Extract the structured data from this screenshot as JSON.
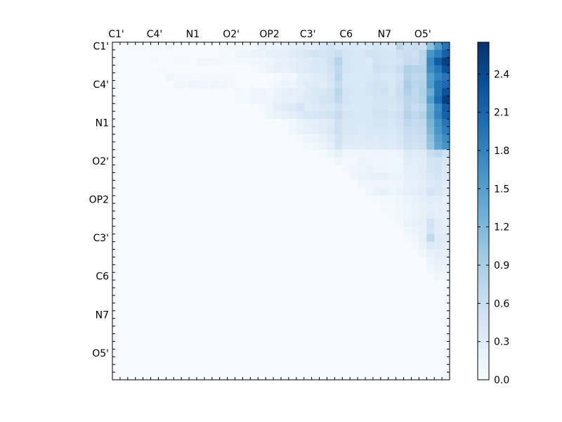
{
  "chart_data": {
    "type": "heatmap",
    "x_tick_labels": [
      "C1'",
      "C4'",
      "N1",
      "O2'",
      "OP2",
      "C3'",
      "C6",
      "N7",
      "O5'"
    ],
    "y_tick_labels": [
      "C1'",
      "C4'",
      "N1",
      "O2'",
      "OP2",
      "C3'",
      "C6",
      "N7",
      "O5'"
    ],
    "tick_every_cells": 5,
    "grid": false,
    "colorscale": "Blues",
    "colorbar": {
      "range": [
        0,
        2.65
      ],
      "ticks": [
        "0.0",
        "0.3",
        "0.6",
        "0.9",
        "1.2",
        "1.5",
        "1.8",
        "2.1",
        "2.4"
      ],
      "tick_values": [
        0,
        0.3,
        0.6,
        0.9,
        1.2,
        1.5,
        1.8,
        2.1,
        2.4
      ]
    },
    "values": [
      [
        0,
        0,
        0.06,
        0.06,
        0,
        0.06,
        0.03,
        0.1,
        0.02,
        0.02,
        0.02,
        0.02,
        0.02,
        0.02,
        0.02,
        0.06,
        0.06,
        0.08,
        0.06,
        0.18,
        0.12,
        0.15,
        0.2,
        0.22,
        0.28,
        0.32,
        0.3,
        0.42,
        0.48,
        0.38,
        0.4,
        0.38,
        0.35,
        0.4,
        0.45,
        0.4,
        0.38,
        0.75,
        0.55,
        0.6,
        0.55,
        1.1,
        1.55,
        1.95
      ],
      [
        0,
        0,
        0,
        0,
        0,
        0,
        0,
        0,
        0,
        0,
        0,
        0,
        0,
        0,
        0.05,
        0.05,
        0.1,
        0.1,
        0.15,
        0.15,
        0.2,
        0.22,
        0.25,
        0.3,
        0.35,
        0.4,
        0.5,
        0.45,
        0.5,
        0.6,
        0.45,
        0.42,
        0.42,
        0.5,
        0.48,
        0.45,
        0.42,
        0.55,
        0.6,
        0.55,
        0.75,
        1.6,
        1.85,
        2.15
      ],
      [
        0,
        0,
        0,
        0,
        0,
        0.04,
        0,
        0,
        0.04,
        0.04,
        0.03,
        0.08,
        0.08,
        0.06,
        0.05,
        0.04,
        0.04,
        0.04,
        0.08,
        0.1,
        0.12,
        0.18,
        0.2,
        0.25,
        0.3,
        0.32,
        0.38,
        0.4,
        0.55,
        0.8,
        0.45,
        0.4,
        0.4,
        0.35,
        0.5,
        0.45,
        0.42,
        0.5,
        0.65,
        0.6,
        0.75,
        1.75,
        2.2,
        2.5
      ],
      [
        0,
        0,
        0,
        0,
        0,
        0,
        0.05,
        0,
        0,
        0,
        0,
        0,
        0,
        0,
        0,
        0,
        0,
        0,
        0.05,
        0.1,
        0.15,
        0.2,
        0.18,
        0.25,
        0.3,
        0.35,
        0.4,
        0.38,
        0.5,
        0.7,
        0.45,
        0.42,
        0.4,
        0.38,
        0.55,
        0.5,
        0.48,
        0.6,
        0.85,
        0.8,
        0.8,
        1.7,
        1.95,
        2.3
      ],
      [
        0,
        0,
        0,
        0,
        0,
        0,
        0,
        0.1,
        0.05,
        0.04,
        0.04,
        0.04,
        0.04,
        0.04,
        0.04,
        0.05,
        0,
        0,
        0,
        0,
        0,
        0.05,
        0.1,
        0.08,
        0.2,
        0.25,
        0.3,
        0.35,
        0.45,
        0.75,
        0.4,
        0.38,
        0.38,
        0.42,
        0.45,
        0.42,
        0.4,
        0.5,
        0.8,
        0.7,
        0.75,
        1.5,
        1.8,
        1.95
      ],
      [
        0,
        0,
        0,
        0,
        0,
        0,
        0,
        0,
        0.08,
        0.08,
        0.12,
        0.1,
        0.08,
        0.12,
        0.08,
        0.05,
        0,
        0,
        0,
        0,
        0.04,
        0.1,
        0.15,
        0.12,
        0.22,
        0.3,
        0.32,
        0.3,
        0.4,
        0.65,
        0.42,
        0.4,
        0.38,
        0.45,
        0.5,
        0.5,
        0.4,
        0.55,
        0.9,
        0.75,
        0.8,
        1.55,
        1.95,
        2.05
      ],
      [
        0,
        0,
        0,
        0,
        0,
        0,
        0,
        0,
        0,
        0,
        0,
        0,
        0,
        0,
        0,
        0,
        0.08,
        0.05,
        0.1,
        0.12,
        0.08,
        0.15,
        0.2,
        0.25,
        0.25,
        0.32,
        0.38,
        0.4,
        0.5,
        0.75,
        0.45,
        0.42,
        0.42,
        0.45,
        0.5,
        0.55,
        0.4,
        0.6,
        0.85,
        0.7,
        0.85,
        1.35,
        1.95,
        2.3
      ],
      [
        0,
        0,
        0,
        0,
        0,
        0,
        0,
        0,
        0,
        0,
        0,
        0,
        0,
        0,
        0,
        0,
        0.05,
        0.05,
        0.1,
        0.12,
        0.1,
        0.18,
        0.25,
        0.22,
        0.3,
        0.35,
        0.4,
        0.45,
        0.5,
        0.7,
        0.45,
        0.4,
        0.4,
        0.4,
        0.48,
        0.45,
        0.45,
        0.55,
        0.75,
        0.7,
        0.8,
        1.5,
        2.05,
        2.5
      ],
      [
        0,
        0,
        0,
        0,
        0,
        0,
        0,
        0,
        0,
        0,
        0,
        0,
        0,
        0,
        0,
        0,
        0,
        0,
        0,
        0.05,
        0.1,
        0.22,
        0.3,
        0.35,
        0.45,
        0.3,
        0.35,
        0.4,
        0.42,
        0.55,
        0.4,
        0.38,
        0.4,
        0.42,
        0.45,
        0.45,
        0.4,
        0.5,
        0.75,
        0.6,
        0.7,
        1.3,
        1.75,
        2.2
      ],
      [
        0,
        0,
        0,
        0,
        0,
        0,
        0,
        0,
        0,
        0,
        0,
        0,
        0,
        0,
        0,
        0,
        0,
        0,
        0,
        0,
        0.1,
        0.15,
        0.2,
        0.25,
        0.35,
        0.4,
        0.42,
        0.45,
        0.5,
        0.65,
        0.45,
        0.42,
        0.42,
        0.42,
        0.5,
        0.5,
        0.45,
        0.55,
        0.8,
        0.7,
        0.8,
        1.35,
        1.8,
        2.15
      ],
      [
        0,
        0,
        0,
        0,
        0,
        0,
        0,
        0,
        0,
        0,
        0,
        0,
        0,
        0,
        0,
        0,
        0,
        0,
        0,
        0,
        0,
        0,
        0.05,
        0.1,
        0.15,
        0.2,
        0.25,
        0.3,
        0.35,
        0.55,
        0.4,
        0.4,
        0.38,
        0.4,
        0.45,
        0.45,
        0.4,
        0.5,
        0.7,
        0.65,
        0.7,
        1.25,
        1.65,
        1.95
      ],
      [
        0,
        0,
        0,
        0,
        0,
        0,
        0,
        0,
        0,
        0,
        0,
        0,
        0,
        0,
        0,
        0,
        0,
        0,
        0,
        0,
        0,
        0,
        0,
        0.1,
        0.15,
        0.2,
        0.25,
        0.3,
        0.38,
        0.55,
        0.4,
        0.4,
        0.35,
        0.42,
        0.4,
        0.4,
        0.38,
        0.45,
        0.65,
        0.6,
        0.65,
        1.2,
        1.6,
        1.85
      ],
      [
        0,
        0,
        0,
        0,
        0,
        0,
        0,
        0,
        0,
        0,
        0,
        0,
        0,
        0,
        0,
        0,
        0,
        0,
        0,
        0,
        0,
        0,
        0,
        0,
        0.05,
        0.1,
        0.15,
        0.2,
        0.3,
        0.5,
        0.35,
        0.35,
        0.32,
        0.38,
        0.35,
        0.38,
        0.35,
        0.42,
        0.6,
        0.55,
        0.6,
        1.1,
        1.5,
        1.7
      ],
      [
        0,
        0,
        0,
        0,
        0,
        0,
        0,
        0,
        0,
        0,
        0,
        0,
        0,
        0,
        0,
        0,
        0,
        0,
        0,
        0,
        0,
        0,
        0,
        0,
        0,
        0.05,
        0.1,
        0.15,
        0.25,
        0.45,
        0.3,
        0.3,
        0.3,
        0.32,
        0.32,
        0.35,
        0.3,
        0.38,
        0.55,
        0.5,
        0.55,
        1.05,
        1.45,
        1.65
      ],
      [
        0,
        0,
        0,
        0,
        0,
        0,
        0,
        0,
        0,
        0,
        0,
        0,
        0,
        0,
        0,
        0,
        0,
        0,
        0,
        0,
        0,
        0,
        0,
        0,
        0,
        0,
        0,
        0.05,
        0.1,
        0.2,
        0.1,
        0.1,
        0.12,
        0.1,
        0.12,
        0.12,
        0.1,
        0.15,
        0.35,
        0.3,
        0.35,
        0.6,
        0.7,
        0.55
      ],
      [
        0,
        0,
        0,
        0,
        0,
        0,
        0,
        0,
        0,
        0,
        0,
        0,
        0,
        0,
        0,
        0,
        0,
        0,
        0,
        0,
        0,
        0,
        0,
        0,
        0,
        0,
        0,
        0,
        0,
        0.1,
        0.05,
        0.05,
        0.15,
        0.12,
        0.1,
        0.1,
        0.08,
        0.1,
        0.3,
        0.25,
        0.3,
        0.45,
        0.5,
        0.4
      ],
      [
        0,
        0,
        0,
        0,
        0,
        0,
        0,
        0,
        0,
        0,
        0,
        0,
        0,
        0,
        0,
        0,
        0,
        0,
        0,
        0,
        0,
        0,
        0,
        0,
        0,
        0,
        0,
        0,
        0,
        0,
        0.05,
        0.1,
        0.12,
        0.15,
        0.12,
        0.12,
        0.1,
        0.12,
        0.25,
        0.22,
        0.3,
        0.45,
        0.5,
        0.35
      ],
      [
        0,
        0,
        0,
        0,
        0,
        0,
        0,
        0,
        0,
        0,
        0,
        0,
        0,
        0,
        0,
        0,
        0,
        0,
        0,
        0,
        0,
        0,
        0,
        0,
        0,
        0,
        0,
        0,
        0,
        0,
        0,
        0.1,
        0.15,
        0.18,
        0.2,
        0.2,
        0.15,
        0.15,
        0.22,
        0.25,
        0.3,
        0.4,
        0.45,
        0.35
      ],
      [
        0,
        0,
        0,
        0,
        0,
        0,
        0,
        0,
        0,
        0,
        0,
        0,
        0,
        0,
        0,
        0,
        0,
        0,
        0,
        0,
        0,
        0,
        0,
        0,
        0,
        0,
        0,
        0,
        0,
        0,
        0,
        0,
        0.08,
        0.1,
        0.12,
        0.12,
        0.1,
        0.12,
        0.2,
        0.2,
        0.25,
        0.35,
        0.4,
        0.3
      ],
      [
        0,
        0,
        0,
        0,
        0,
        0,
        0,
        0,
        0,
        0,
        0,
        0,
        0,
        0,
        0,
        0,
        0,
        0,
        0,
        0,
        0,
        0,
        0,
        0,
        0,
        0,
        0,
        0,
        0,
        0,
        0,
        0,
        0,
        0.1,
        0.15,
        0.18,
        0.12,
        0.15,
        0.22,
        0.25,
        0.3,
        0.45,
        0.4,
        0.3
      ],
      [
        0,
        0,
        0,
        0,
        0,
        0,
        0,
        0,
        0,
        0,
        0,
        0,
        0,
        0,
        0,
        0,
        0,
        0,
        0,
        0,
        0,
        0,
        0,
        0,
        0,
        0,
        0,
        0,
        0,
        0,
        0,
        0,
        0,
        0,
        0.05,
        0.08,
        0.06,
        0.1,
        0.15,
        0.18,
        0.25,
        0.3,
        0.28,
        0.22
      ],
      [
        0,
        0,
        0,
        0,
        0,
        0,
        0,
        0,
        0,
        0,
        0,
        0,
        0,
        0,
        0,
        0,
        0,
        0,
        0,
        0,
        0,
        0,
        0,
        0,
        0,
        0,
        0,
        0,
        0,
        0,
        0,
        0,
        0,
        0,
        0,
        0.05,
        0.05,
        0.08,
        0.12,
        0.15,
        0.2,
        0.25,
        0.22,
        0.2
      ],
      [
        0,
        0,
        0,
        0,
        0,
        0,
        0,
        0,
        0,
        0,
        0,
        0,
        0,
        0,
        0,
        0,
        0,
        0,
        0,
        0,
        0,
        0,
        0,
        0,
        0,
        0,
        0,
        0,
        0,
        0,
        0,
        0,
        0,
        0,
        0,
        0,
        0.05,
        0.08,
        0.12,
        0.15,
        0.2,
        0.3,
        0.25,
        0.2
      ],
      [
        0,
        0,
        0,
        0,
        0,
        0,
        0,
        0,
        0,
        0,
        0,
        0,
        0,
        0,
        0,
        0,
        0,
        0,
        0,
        0,
        0,
        0,
        0,
        0,
        0,
        0,
        0,
        0,
        0,
        0,
        0,
        0,
        0,
        0,
        0,
        0,
        0,
        0.05,
        0.15,
        0.2,
        0.25,
        0.5,
        0.3,
        0.25
      ],
      [
        0,
        0,
        0,
        0,
        0,
        0,
        0,
        0,
        0,
        0,
        0,
        0,
        0,
        0,
        0,
        0,
        0,
        0,
        0,
        0,
        0,
        0,
        0,
        0,
        0,
        0,
        0,
        0,
        0,
        0,
        0,
        0,
        0,
        0,
        0,
        0,
        0,
        0,
        0.1,
        0.15,
        0.2,
        0.45,
        0.3,
        0.25
      ],
      [
        0,
        0,
        0,
        0,
        0,
        0,
        0,
        0,
        0,
        0,
        0,
        0,
        0,
        0,
        0,
        0,
        0,
        0,
        0,
        0,
        0,
        0,
        0,
        0,
        0,
        0,
        0,
        0,
        0,
        0,
        0,
        0,
        0,
        0,
        0,
        0,
        0,
        0,
        0.05,
        0.1,
        0.2,
        0.7,
        0.35,
        0.3
      ],
      [
        0,
        0,
        0,
        0,
        0,
        0,
        0,
        0,
        0,
        0,
        0,
        0,
        0,
        0,
        0,
        0,
        0,
        0,
        0,
        0,
        0,
        0,
        0,
        0,
        0,
        0,
        0,
        0,
        0,
        0,
        0,
        0,
        0,
        0,
        0,
        0,
        0,
        0,
        0,
        0.05,
        0.15,
        0.35,
        0.3,
        0.25
      ],
      [
        0,
        0,
        0,
        0,
        0,
        0,
        0,
        0,
        0,
        0,
        0,
        0,
        0,
        0,
        0,
        0,
        0,
        0,
        0,
        0,
        0,
        0,
        0,
        0,
        0,
        0,
        0,
        0,
        0,
        0,
        0,
        0,
        0,
        0,
        0,
        0,
        0,
        0,
        0,
        0,
        0.1,
        0.2,
        0.25,
        0.2
      ],
      [
        0,
        0,
        0,
        0,
        0,
        0,
        0,
        0,
        0,
        0,
        0,
        0,
        0,
        0,
        0,
        0,
        0,
        0,
        0,
        0,
        0,
        0,
        0,
        0,
        0,
        0,
        0,
        0,
        0,
        0,
        0,
        0,
        0,
        0,
        0,
        0,
        0,
        0,
        0,
        0,
        0,
        0.15,
        0.2,
        0.2
      ],
      [
        0,
        0,
        0,
        0,
        0,
        0,
        0,
        0,
        0,
        0,
        0,
        0,
        0,
        0,
        0,
        0,
        0,
        0,
        0,
        0,
        0,
        0,
        0,
        0,
        0,
        0,
        0,
        0,
        0,
        0,
        0,
        0,
        0,
        0,
        0,
        0,
        0,
        0,
        0,
        0,
        0,
        0.1,
        0.15,
        0.12
      ],
      [
        0,
        0,
        0,
        0,
        0,
        0,
        0,
        0,
        0,
        0,
        0,
        0,
        0,
        0,
        0,
        0,
        0,
        0,
        0,
        0,
        0,
        0,
        0,
        0,
        0,
        0,
        0,
        0,
        0,
        0,
        0,
        0,
        0,
        0,
        0,
        0,
        0,
        0,
        0,
        0,
        0,
        0,
        0.1,
        0.08
      ],
      [
        0,
        0,
        0,
        0,
        0,
        0,
        0,
        0,
        0,
        0,
        0,
        0,
        0,
        0,
        0,
        0,
        0,
        0,
        0,
        0,
        0,
        0,
        0,
        0,
        0,
        0,
        0,
        0,
        0,
        0,
        0,
        0,
        0,
        0,
        0,
        0,
        0,
        0,
        0,
        0,
        0,
        0,
        0,
        0.05
      ]
    ]
  }
}
